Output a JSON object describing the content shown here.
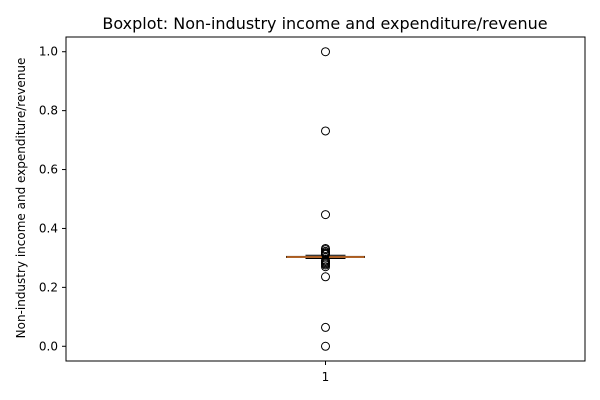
{
  "chart_data": {
    "type": "boxplot",
    "title": "Boxplot:  Non-industry income and expenditure/revenue",
    "xlabel": "",
    "ylabel": "Non-industry income and expenditure/revenue",
    "categories": [
      "1"
    ],
    "ylim": [
      -0.05,
      1.05
    ],
    "yticks": [
      0.0,
      0.2,
      0.4,
      0.6,
      0.8,
      1.0
    ],
    "ytick_labels": [
      "0.0",
      "0.2",
      "0.4",
      "0.6",
      "0.8",
      "1.0"
    ],
    "grid": false,
    "boxes": [
      {
        "category": "1",
        "q1": 0.302,
        "median": 0.303,
        "q3": 0.305,
        "whisker_low": 0.298,
        "whisker_high": 0.309,
        "outliers": [
          1.0,
          0.731,
          0.447,
          0.332,
          0.328,
          0.322,
          0.318,
          0.315,
          0.312,
          0.292,
          0.288,
          0.284,
          0.28,
          0.276,
          0.27,
          0.236,
          0.064,
          0.0
        ]
      }
    ],
    "colors": {
      "median": "#e07b2c",
      "box": "#000000",
      "outlier": "#000000"
    }
  }
}
